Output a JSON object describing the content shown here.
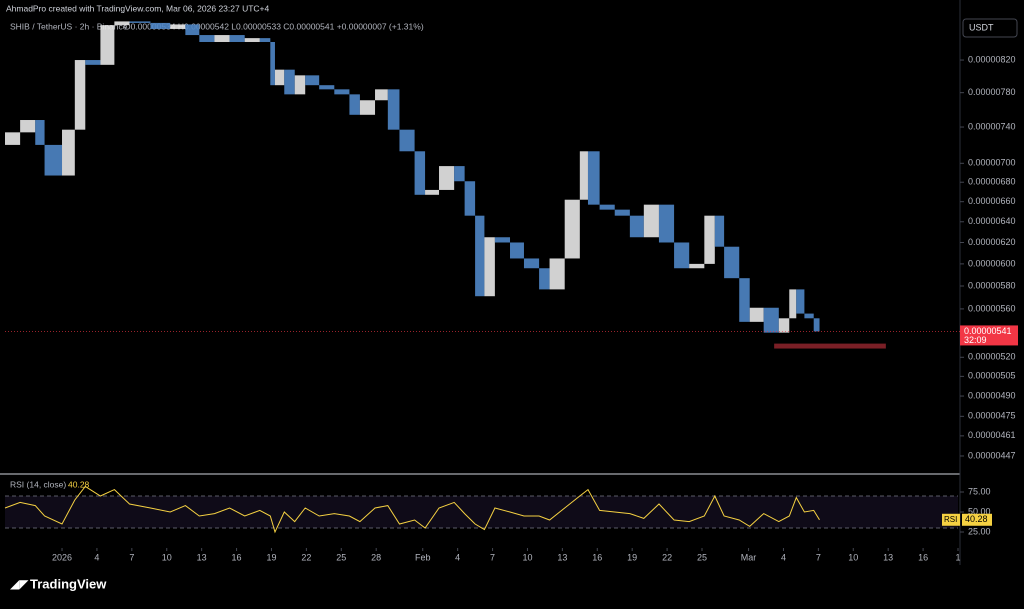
{
  "header": {
    "credit": "AhmadPro created with TradingView.com, Mar 06, 2026 23:27 UTC+4",
    "brand": "TradingView"
  },
  "chart_data": [
    {
      "type": "candlestick",
      "symbol": "SHIB / TetherUS · 2h · Binance",
      "ohlc": "O0.00000534 H0.00000542 L0.00000533 C0.00000541 +0.00000007 (+1.31%)",
      "currency": "USDT",
      "log_scale": true,
      "up_color": "#e8e8e8",
      "down_color": "#4f86c6",
      "x": [
        -4.9,
        -3.6,
        -2.3,
        -1.5,
        0,
        1.1,
        2,
        3.3,
        4.5,
        5.8,
        7.6,
        9.3,
        10.6,
        11.8,
        13.1,
        14.4,
        15.7,
        17,
        17.9,
        18.3,
        19.1,
        20,
        20.9,
        22.1,
        23.4,
        24.7,
        25.6,
        26.9,
        28,
        29,
        30.3,
        31.2,
        32.4,
        33.7,
        34.6,
        35.5,
        36.3,
        37.2,
        38.5,
        39.7,
        41,
        41.9,
        43.2,
        44.5,
        45.2,
        46.2,
        47.5,
        48.8,
        50,
        51.3,
        52.6,
        53.9,
        55.2,
        56.1,
        56.9,
        58.2,
        59.1,
        60.3,
        61.6,
        62.5,
        63.1,
        63.8,
        64.6,
        65.1
      ],
      "values": [
        7.2e-06,
        7.34e-06,
        7.48e-06,
        7.2e-06,
        6.87e-06,
        7.37e-06,
        8.2e-06,
        8.14e-06,
        8.65e-06,
        8.7e-06,
        8.68e-06,
        8.6e-06,
        8.66e-06,
        8.52e-06,
        8.43e-06,
        8.52e-06,
        8.43e-06,
        8.48e-06,
        8.43e-06,
        7.89e-06,
        8.08e-06,
        7.78e-06,
        8.01e-06,
        7.89e-06,
        7.84e-06,
        7.78e-06,
        7.54e-06,
        7.71e-06,
        7.84e-06,
        7.37e-06,
        7.13e-06,
        6.67e-06,
        6.72e-06,
        6.97e-06,
        6.81e-06,
        6.46e-06,
        5.71e-06,
        6.25e-06,
        6.2e-06,
        6.05e-06,
        5.96e-06,
        5.77e-06,
        6.05e-06,
        6.62e-06,
        7.13e-06,
        6.57e-06,
        6.52e-06,
        6.46e-06,
        6.25e-06,
        6.57e-06,
        6.2e-06,
        5.96e-06,
        6e-06,
        6.46e-06,
        6.16e-06,
        5.87e-06,
        5.49e-06,
        5.61e-06,
        5.4e-06,
        5.52e-06,
        5.77e-06,
        5.56e-06,
        5.52e-06,
        5.41e-06
      ],
      "xlim": [
        -4.9,
        77
      ],
      "xticks": [
        {
          "value": 0,
          "label": "2026"
        },
        {
          "value": 3,
          "label": "4"
        },
        {
          "value": 6,
          "label": "7"
        },
        {
          "value": 9,
          "label": "10"
        },
        {
          "value": 12,
          "label": "13"
        },
        {
          "value": 15,
          "label": "16"
        },
        {
          "value": 18,
          "label": "19"
        },
        {
          "value": 21,
          "label": "22"
        },
        {
          "value": 24,
          "label": "25"
        },
        {
          "value": 27,
          "label": "28"
        },
        {
          "value": 31,
          "label": "Feb"
        },
        {
          "value": 34,
          "label": "4"
        },
        {
          "value": 37,
          "label": "7"
        },
        {
          "value": 40,
          "label": "10"
        },
        {
          "value": 43,
          "label": "13"
        },
        {
          "value": 46,
          "label": "16"
        },
        {
          "value": 49,
          "label": "19"
        },
        {
          "value": 52,
          "label": "22"
        },
        {
          "value": 55,
          "label": "25"
        },
        {
          "value": 59,
          "label": "Mar"
        },
        {
          "value": 62,
          "label": "4"
        },
        {
          "value": 65,
          "label": "7"
        },
        {
          "value": 68,
          "label": "10"
        },
        {
          "value": 71,
          "label": "13"
        },
        {
          "value": 74,
          "label": "16"
        },
        {
          "value": 77,
          "label": "1"
        }
      ],
      "ylim": [
        4.375e-06,
        8.786e-06
      ],
      "yticks": [
        {
          "value": 8.2e-06,
          "label": "0.00000820"
        },
        {
          "value": 7.8e-06,
          "label": "0.00000780"
        },
        {
          "value": 7.4e-06,
          "label": "0.00000740"
        },
        {
          "value": 7e-06,
          "label": "0.00000700"
        },
        {
          "value": 6.8e-06,
          "label": "0.00000680"
        },
        {
          "value": 6.6e-06,
          "label": "0.00000660"
        },
        {
          "value": 6.4e-06,
          "label": "0.00000640"
        },
        {
          "value": 6.2e-06,
          "label": "0.00000620"
        },
        {
          "value": 6e-06,
          "label": "0.00000600"
        },
        {
          "value": 5.8e-06,
          "label": "0.00000580"
        },
        {
          "value": 5.6e-06,
          "label": "0.00000560"
        },
        {
          "value": 5.2e-06,
          "label": "0.00000520"
        },
        {
          "value": 5.05e-06,
          "label": "0.00000505"
        },
        {
          "value": 4.9e-06,
          "label": "0.00000490"
        },
        {
          "value": 4.75e-06,
          "label": "0.00000475"
        },
        {
          "value": 4.61e-06,
          "label": "0.00000461"
        },
        {
          "value": 4.47e-06,
          "label": "0.00000447"
        }
      ],
      "last_price": {
        "value": 5.41e-06,
        "label": "0.00000541",
        "countdown": "32:09",
        "color": "#f23645"
      },
      "zone": {
        "x": [
          61.2,
          70.8
        ],
        "y": [
          5.27e-06,
          5.31e-06
        ],
        "color": "#7a1f26"
      }
    },
    {
      "type": "line",
      "legend_label": "RSI (14, close)",
      "name": "RSI",
      "color": "#f5d142",
      "values": [
        55,
        62,
        58,
        45,
        35,
        65,
        82,
        70,
        78,
        60,
        55,
        50,
        58,
        45,
        48,
        55,
        45,
        52,
        45,
        25,
        50,
        38,
        55,
        45,
        48,
        45,
        38,
        55,
        58,
        35,
        40,
        30,
        55,
        62,
        48,
        35,
        28,
        55,
        50,
        45,
        45,
        40,
        55,
        70,
        78,
        52,
        50,
        48,
        42,
        60,
        40,
        38,
        45,
        70,
        45,
        40,
        32,
        48,
        38,
        45,
        68,
        50,
        52,
        40.28
      ],
      "ylim": [
        8.75,
        93.75
      ],
      "yticks": [
        {
          "value": 75,
          "label": "75.00"
        },
        {
          "value": 50,
          "label": "50.00"
        },
        {
          "value": 25,
          "label": "25.00"
        }
      ],
      "bands": [
        30,
        70
      ],
      "band_color": "#7e57c2"
    }
  ]
}
